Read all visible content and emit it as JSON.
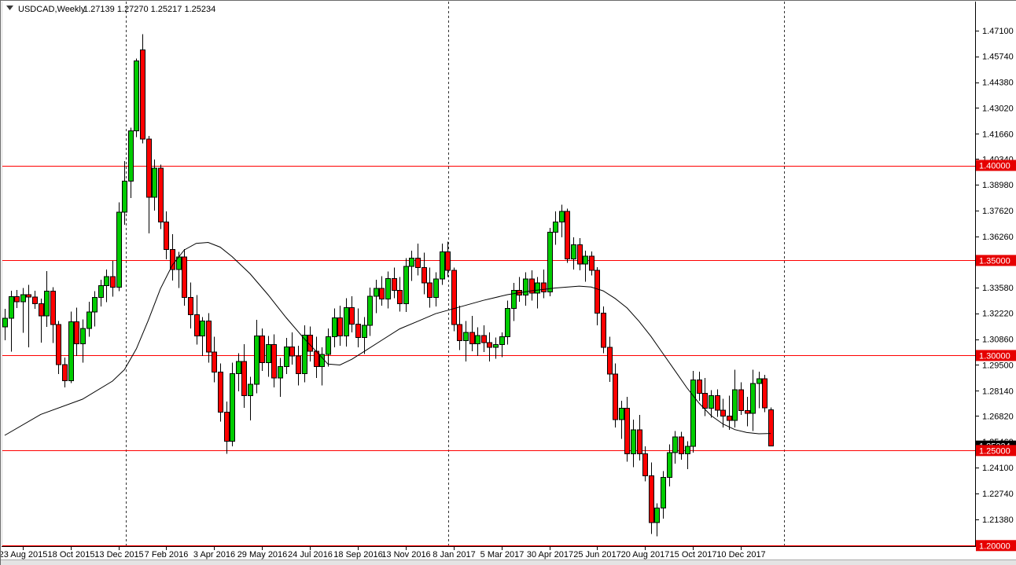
{
  "header": {
    "symbol_period": "USDCAD,Weekly",
    "open": "1.27139",
    "high": "1.27270",
    "low": "1.25217",
    "close": "1.25234",
    "marker_icon": "triangle-down"
  },
  "colors": {
    "background": "#ffffff",
    "up_fill": "#00CC00",
    "down_fill": "#FF0000",
    "candle_border": "#000000",
    "wick": "#000000",
    "ma_line": "#000000",
    "hline_red": "#FF0000",
    "badge_red_bg": "#E60000",
    "badge_black_bg": "#000000",
    "badge_text": "#ffffff",
    "separator": "#333333",
    "axis": "#000000",
    "text": "#000000",
    "chrome_strip": "#e4e4e4",
    "window_border": "#6a6a6a"
  },
  "y_axis": {
    "labels": [
      "1.47100",
      "1.45740",
      "1.44380",
      "1.43020",
      "1.41660",
      "1.40340",
      "1.38980",
      "1.37620",
      "1.36260",
      "1.34920",
      "1.33580",
      "1.32220",
      "1.30860",
      "1.29500",
      "1.28140",
      "1.26820",
      "1.25460",
      "1.24100",
      "1.22740",
      "1.21380",
      "1.20020"
    ],
    "red_badges": [
      "1.40000",
      "1.35000",
      "1.30000",
      "1.25000",
      "1.20000"
    ],
    "current_price_badge": "1.25234"
  },
  "x_axis": {
    "labels": [
      "23 Aug 2015",
      "18 Oct 2015",
      "13 Dec 2015",
      "7 Feb 2016",
      "3 Apr 2016",
      "29 May 2016",
      "24 Jul 2016",
      "18 Sep 2016",
      "13 Nov 2016",
      "8 Jan 2017",
      "5 Mar 2017",
      "30 Apr 2017",
      "25 Jun 2017",
      "20 Aug 2017",
      "15 Oct 2017",
      "10 Dec 2017"
    ],
    "first_label_candle_index": 3,
    "candles_per_label": 8
  },
  "chart_data": {
    "type": "candlestick",
    "title": "USDCAD,Weekly",
    "symbol": "USDCAD",
    "timeframe": "Weekly",
    "ylim": [
      1.1997,
      1.4862
    ],
    "grid": false,
    "current_bar": {
      "open": 1.27139,
      "high": 1.2727,
      "low": 1.25217,
      "close": 1.25234
    },
    "horizontal_lines": [
      1.4,
      1.35,
      1.3,
      1.25,
      1.2
    ],
    "period_separators_index": [
      20.2,
      74.1,
      130.2
    ],
    "candles": [
      [
        1.315,
        1.3245,
        1.308,
        1.3195
      ],
      [
        1.3195,
        1.334,
        1.302,
        1.331
      ],
      [
        1.331,
        1.3345,
        1.325,
        1.3282
      ],
      [
        1.3282,
        1.3355,
        1.312,
        1.332
      ],
      [
        1.332,
        1.3372,
        1.3042,
        1.3308
      ],
      [
        1.3308,
        1.334,
        1.3245,
        1.3272
      ],
      [
        1.3272,
        1.33,
        1.3068,
        1.3208
      ],
      [
        1.3208,
        1.3445,
        1.315,
        1.3338
      ],
      [
        1.3338,
        1.336,
        1.3065,
        1.3162
      ],
      [
        1.3162,
        1.3182,
        1.2902,
        1.2952
      ],
      [
        1.2952,
        1.299,
        1.2832,
        1.2868
      ],
      [
        1.2868,
        1.3232,
        1.2855,
        1.3178
      ],
      [
        1.3178,
        1.3252,
        1.2998,
        1.3062
      ],
      [
        1.3062,
        1.319,
        1.2962,
        1.3142
      ],
      [
        1.3142,
        1.3282,
        1.3098,
        1.3228
      ],
      [
        1.3228,
        1.3338,
        1.3152,
        1.3305
      ],
      [
        1.3305,
        1.3398,
        1.3258,
        1.3368
      ],
      [
        1.3368,
        1.3452,
        1.328,
        1.3415
      ],
      [
        1.3415,
        1.3498,
        1.331,
        1.336
      ],
      [
        1.336,
        1.3805,
        1.3338,
        1.3755
      ],
      [
        1.3755,
        1.4022,
        1.3688,
        1.3918
      ],
      [
        1.3918,
        1.4198,
        1.3828,
        1.4182
      ],
      [
        1.4182,
        1.4562,
        1.4148,
        1.455
      ],
      [
        1.4608,
        1.469,
        1.4115,
        1.4138
      ],
      [
        1.4138,
        1.4155,
        1.3642,
        1.3832
      ],
      [
        1.3832,
        1.4032,
        1.3762,
        1.3985
      ],
      [
        1.3985,
        1.4005,
        1.3665,
        1.3702
      ],
      [
        1.3702,
        1.3758,
        1.3505,
        1.3558
      ],
      [
        1.3558,
        1.3638,
        1.3395,
        1.3452
      ],
      [
        1.3452,
        1.3545,
        1.3355,
        1.3518
      ],
      [
        1.3518,
        1.356,
        1.3262,
        1.3305
      ],
      [
        1.3305,
        1.3385,
        1.3142,
        1.3215
      ],
      [
        1.3215,
        1.3318,
        1.3058,
        1.3102
      ],
      [
        1.3102,
        1.3202,
        1.2998,
        1.3182
      ],
      [
        1.3182,
        1.3222,
        1.2962,
        1.3018
      ],
      [
        1.3018,
        1.3098,
        1.2858,
        1.2912
      ],
      [
        1.2912,
        1.2958,
        1.2652,
        1.2702
      ],
      [
        1.2702,
        1.2758,
        1.2482,
        1.2548
      ],
      [
        1.2548,
        1.2962,
        1.2522,
        1.2905
      ],
      [
        1.2905,
        1.3012,
        1.2812,
        1.2968
      ],
      [
        1.2968,
        1.306,
        1.2725,
        1.2788
      ],
      [
        1.2788,
        1.2888,
        1.2658,
        1.2848
      ],
      [
        1.2848,
        1.3188,
        1.2802,
        1.3102
      ],
      [
        1.3102,
        1.3142,
        1.2918,
        1.2962
      ],
      [
        1.2962,
        1.3102,
        1.2888,
        1.3058
      ],
      [
        1.3058,
        1.3112,
        1.2832,
        1.2882
      ],
      [
        1.2882,
        1.2988,
        1.2782,
        1.2942
      ],
      [
        1.2942,
        1.3092,
        1.2902,
        1.3045
      ],
      [
        1.3045,
        1.3122,
        1.2952,
        1.2998
      ],
      [
        1.2998,
        1.3052,
        1.2842,
        1.2905
      ],
      [
        1.2905,
        1.3158,
        1.2858,
        1.3108
      ],
      [
        1.3108,
        1.3152,
        1.2968,
        1.3022
      ],
      [
        1.3022,
        1.3098,
        1.2882,
        1.2942
      ],
      [
        1.2942,
        1.3042,
        1.2842,
        1.3005
      ],
      [
        1.3005,
        1.3142,
        1.2942,
        1.3098
      ],
      [
        1.3098,
        1.3248,
        1.3042,
        1.3198
      ],
      [
        1.3198,
        1.3262,
        1.3052,
        1.3102
      ],
      [
        1.3102,
        1.3302,
        1.3048,
        1.3252
      ],
      [
        1.3252,
        1.3312,
        1.3122,
        1.3165
      ],
      [
        1.3165,
        1.3248,
        1.3042,
        1.3095
      ],
      [
        1.3095,
        1.3202,
        1.3008,
        1.3158
      ],
      [
        1.3158,
        1.3358,
        1.3102,
        1.3312
      ],
      [
        1.3312,
        1.3398,
        1.3222,
        1.3352
      ],
      [
        1.3352,
        1.3418,
        1.3262,
        1.3298
      ],
      [
        1.3298,
        1.3442,
        1.3248,
        1.3405
      ],
      [
        1.3405,
        1.3462,
        1.3302,
        1.3342
      ],
      [
        1.3342,
        1.3412,
        1.3232,
        1.3272
      ],
      [
        1.3272,
        1.3512,
        1.3228,
        1.3468
      ],
      [
        1.3468,
        1.3552,
        1.3392,
        1.3512
      ],
      [
        1.3512,
        1.3588,
        1.3422,
        1.3462
      ],
      [
        1.3462,
        1.3542,
        1.3322,
        1.3382
      ],
      [
        1.3382,
        1.3462,
        1.3252,
        1.3305
      ],
      [
        1.3305,
        1.3438,
        1.3258,
        1.3402
      ],
      [
        1.3402,
        1.3588,
        1.3372,
        1.3545
      ],
      [
        1.3545,
        1.3598,
        1.3412,
        1.3448
      ],
      [
        1.3448,
        1.3462,
        1.3128,
        1.3162
      ],
      [
        1.3162,
        1.3262,
        1.3028,
        1.3078
      ],
      [
        1.3078,
        1.3182,
        1.2968,
        1.3122
      ],
      [
        1.3122,
        1.3208,
        1.3022,
        1.3062
      ],
      [
        1.3062,
        1.3148,
        1.2998,
        1.3105
      ],
      [
        1.3105,
        1.3158,
        1.3018,
        1.3068
      ],
      [
        1.3068,
        1.3122,
        1.2968,
        1.3042
      ],
      [
        1.3042,
        1.3095,
        1.2982,
        1.3058
      ],
      [
        1.3058,
        1.3122,
        1.2992,
        1.3098
      ],
      [
        1.3098,
        1.3288,
        1.3058,
        1.3248
      ],
      [
        1.3248,
        1.3382,
        1.3182,
        1.3342
      ],
      [
        1.3342,
        1.3412,
        1.3282,
        1.3318
      ],
      [
        1.3318,
        1.3438,
        1.3262,
        1.3402
      ],
      [
        1.3402,
        1.3448,
        1.3288,
        1.3328
      ],
      [
        1.3328,
        1.3412,
        1.3248,
        1.3382
      ],
      [
        1.3382,
        1.3452,
        1.3302,
        1.3335
      ],
      [
        1.3335,
        1.3672,
        1.3312,
        1.3648
      ],
      [
        1.3648,
        1.3758,
        1.3582,
        1.3702
      ],
      [
        1.3702,
        1.3793,
        1.3622,
        1.3758
      ],
      [
        1.3758,
        1.3772,
        1.3488,
        1.3508
      ],
      [
        1.3508,
        1.3622,
        1.3452,
        1.3582
      ],
      [
        1.3582,
        1.3618,
        1.3448,
        1.3482
      ],
      [
        1.3482,
        1.3552,
        1.3388,
        1.3522
      ],
      [
        1.3522,
        1.3548,
        1.3422,
        1.3448
      ],
      [
        1.3448,
        1.3465,
        1.3158,
        1.3222
      ],
      [
        1.3222,
        1.3258,
        1.3012,
        1.3042
      ],
      [
        1.3042,
        1.3098,
        1.2862,
        1.2902
      ],
      [
        1.2902,
        1.2958,
        1.2622,
        1.2662
      ],
      [
        1.2662,
        1.2762,
        1.2562,
        1.2722
      ],
      [
        1.2722,
        1.2782,
        1.2442,
        1.2482
      ],
      [
        1.2482,
        1.2662,
        1.2412,
        1.2608
      ],
      [
        1.2608,
        1.2688,
        1.2448,
        1.2482
      ],
      [
        1.2482,
        1.2522,
        1.2338,
        1.2368
      ],
      [
        1.2368,
        1.2438,
        1.2062,
        1.2122
      ],
      [
        1.2122,
        1.2222,
        1.2048,
        1.2198
      ],
      [
        1.2198,
        1.2392,
        1.2142,
        1.2358
      ],
      [
        1.2358,
        1.2532,
        1.2312,
        1.2488
      ],
      [
        1.2488,
        1.2602,
        1.2432,
        1.2572
      ],
      [
        1.2572,
        1.2598,
        1.2452,
        1.2482
      ],
      [
        1.2482,
        1.2548,
        1.2402,
        1.2522
      ],
      [
        1.2522,
        1.2918,
        1.2488,
        1.2872
      ],
      [
        1.2872,
        1.2915,
        1.2762,
        1.2802
      ],
      [
        1.2802,
        1.2882,
        1.2682,
        1.2722
      ],
      [
        1.2722,
        1.2818,
        1.2672,
        1.2788
      ],
      [
        1.2788,
        1.2822,
        1.2678,
        1.2712
      ],
      [
        1.2712,
        1.2772,
        1.2622,
        1.2682
      ],
      [
        1.2682,
        1.2788,
        1.2608,
        1.2658
      ],
      [
        1.2658,
        1.2925,
        1.2622,
        1.282
      ],
      [
        1.282,
        1.2858,
        1.2688,
        1.271
      ],
      [
        1.271,
        1.2782,
        1.2628,
        1.2695
      ],
      [
        1.2695,
        1.2925,
        1.2602,
        1.2853
      ],
      [
        1.2853,
        1.2915,
        1.2722,
        1.2878
      ],
      [
        1.2878,
        1.2898,
        1.2702,
        1.2724
      ],
      [
        1.27139,
        1.2727,
        1.25217,
        1.25234
      ]
    ],
    "moving_average_points": [
      [
        0,
        1.258
      ],
      [
        6,
        1.269
      ],
      [
        13,
        1.277
      ],
      [
        18,
        1.2865
      ],
      [
        20,
        1.2925
      ],
      [
        22,
        1.3035
      ],
      [
        24,
        1.3185
      ],
      [
        26,
        1.335
      ],
      [
        28,
        1.3475
      ],
      [
        30,
        1.3555
      ],
      [
        32,
        1.359
      ],
      [
        34,
        1.3595
      ],
      [
        36,
        1.357
      ],
      [
        38,
        1.352
      ],
      [
        41,
        1.343
      ],
      [
        44,
        1.332
      ],
      [
        47,
        1.32
      ],
      [
        50,
        1.309
      ],
      [
        53,
        1.299
      ],
      [
        54,
        1.2955
      ],
      [
        56,
        1.295
      ],
      [
        58,
        1.298
      ],
      [
        60,
        1.302
      ],
      [
        63,
        1.308
      ],
      [
        66,
        1.314
      ],
      [
        69,
        1.318
      ],
      [
        72,
        1.322
      ],
      [
        76,
        1.3255
      ],
      [
        80,
        1.329
      ],
      [
        84,
        1.332
      ],
      [
        88,
        1.334
      ],
      [
        92,
        1.3355
      ],
      [
        96,
        1.3365
      ],
      [
        98,
        1.336
      ],
      [
        100,
        1.334
      ],
      [
        102,
        1.33
      ],
      [
        104,
        1.325
      ],
      [
        106,
        1.318
      ],
      [
        108,
        1.31
      ],
      [
        110,
        1.301
      ],
      [
        112,
        1.292
      ],
      [
        114,
        1.283
      ],
      [
        116,
        1.275
      ],
      [
        118,
        1.2685
      ],
      [
        120,
        1.264
      ],
      [
        122,
        1.261
      ],
      [
        124,
        1.2595
      ],
      [
        126,
        1.2588
      ],
      [
        128,
        1.259
      ]
    ]
  }
}
